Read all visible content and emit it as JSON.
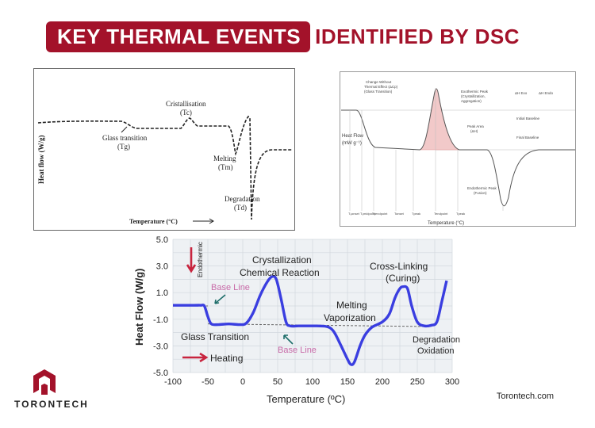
{
  "header": {
    "title_box": "KEY THERMAL EVENTS",
    "title_rest": "IDENTIFIED BY DSC"
  },
  "panel1": {
    "ylabel": "Heat flow (W/g)",
    "xlabel": "Temperature (°C)",
    "labels": {
      "glass": "Glass transition",
      "glass_sym": "(Tg)",
      "cryst": "Cristallisation",
      "cryst_sym": "(Tc)",
      "melt": "Melting",
      "melt_sym": "(Tm)",
      "degr": "Degradation",
      "degr_sym": "(Td)"
    }
  },
  "panel2": {
    "ylabel": "Heat Flow",
    "yunit": "(mW g⁻¹)",
    "xlabel": "Temperature (°C)",
    "ann": {
      "change": "Change Without",
      "change2": "Thermal Effect (ΔCp)",
      "change3": "(Glass Transition)",
      "exo": "Exothermic Peak",
      "exo2": "(Crystallization,",
      "exo3": "Aggregation)",
      "area": "Peak Area",
      "area2": "(ΔH)",
      "dh_exo": "ΔH Exo",
      "dh_endo": "ΔH Endo",
      "initial": "Initial Baseline",
      "final": "Final Baseline",
      "endo": "Endothermic Peak",
      "endo2": "(Fusion)"
    },
    "ticks": [
      "T₉onset",
      "T₉midpoint",
      "T₉endpoint",
      "Tonset",
      "Tpeak",
      "Tendpoint",
      "Tpeak"
    ]
  },
  "chart_data": {
    "type": "line",
    "xlabel": "Temperature (ºC)",
    "ylabel": "Heat Flow (W/g)",
    "xlim": [
      -100,
      300
    ],
    "ylim": [
      -5.0,
      5.0
    ],
    "x_ticks": [
      "-100",
      "-50",
      "0",
      "50",
      "100",
      "150",
      "200",
      "250",
      "300"
    ],
    "y_ticks": [
      "5.0",
      "3.0",
      "1.0",
      "-1.0",
      "-3.0",
      "-5.0"
    ],
    "grid": true,
    "series": [
      {
        "x": [
          -100,
          -70,
          -60,
          -55,
          -50,
          -45,
          -35,
          -20,
          -5,
          5,
          15,
          25,
          35,
          42,
          48,
          55,
          62,
          68,
          80,
          100,
          120,
          130,
          140,
          150,
          155,
          160,
          168,
          175,
          185,
          200,
          210,
          218,
          225,
          230,
          236,
          242,
          250,
          260,
          270,
          278,
          285,
          292
        ],
        "y": [
          0.05,
          0.05,
          0.05,
          0.0,
          -0.8,
          -1.35,
          -1.4,
          -1.35,
          -1.4,
          -1.3,
          -0.5,
          0.8,
          1.8,
          2.2,
          2.0,
          0.5,
          -1.2,
          -1.5,
          -1.5,
          -1.5,
          -1.55,
          -1.9,
          -2.9,
          -4.0,
          -4.4,
          -4.2,
          -3.0,
          -2.2,
          -1.6,
          -1.2,
          -0.6,
          0.6,
          1.3,
          1.45,
          1.3,
          0.0,
          -1.2,
          -1.5,
          -1.45,
          -1.2,
          0.3,
          1.9
        ]
      }
    ],
    "baselines": [
      {
        "x": [
          -75,
          -50
        ],
        "y": [
          0.0,
          0.0
        ]
      },
      {
        "x": [
          -50,
          270
        ],
        "y": [
          -1.35,
          -1.55
        ]
      }
    ],
    "annotations": {
      "cryst": "Crystallization",
      "chem": "Chemical Reaction",
      "cross": "Cross-Linking",
      "curing": "(Curing)",
      "melting": "Melting",
      "vapor": "Vaporization",
      "glass": "Glass Transition",
      "degr": "Degradation",
      "oxid": "Oxidation",
      "base1": "Base Line",
      "base2": "Base Line",
      "endo": "Endothermic",
      "heating": "Heating"
    },
    "colors": {
      "line": "#3a3ee0",
      "base_label": "#c86ba8",
      "arrow": "#c8243e",
      "teal": "#1e6e6a"
    }
  },
  "footer": {
    "brand": "TORONTECH",
    "site": "Torontech.com"
  }
}
